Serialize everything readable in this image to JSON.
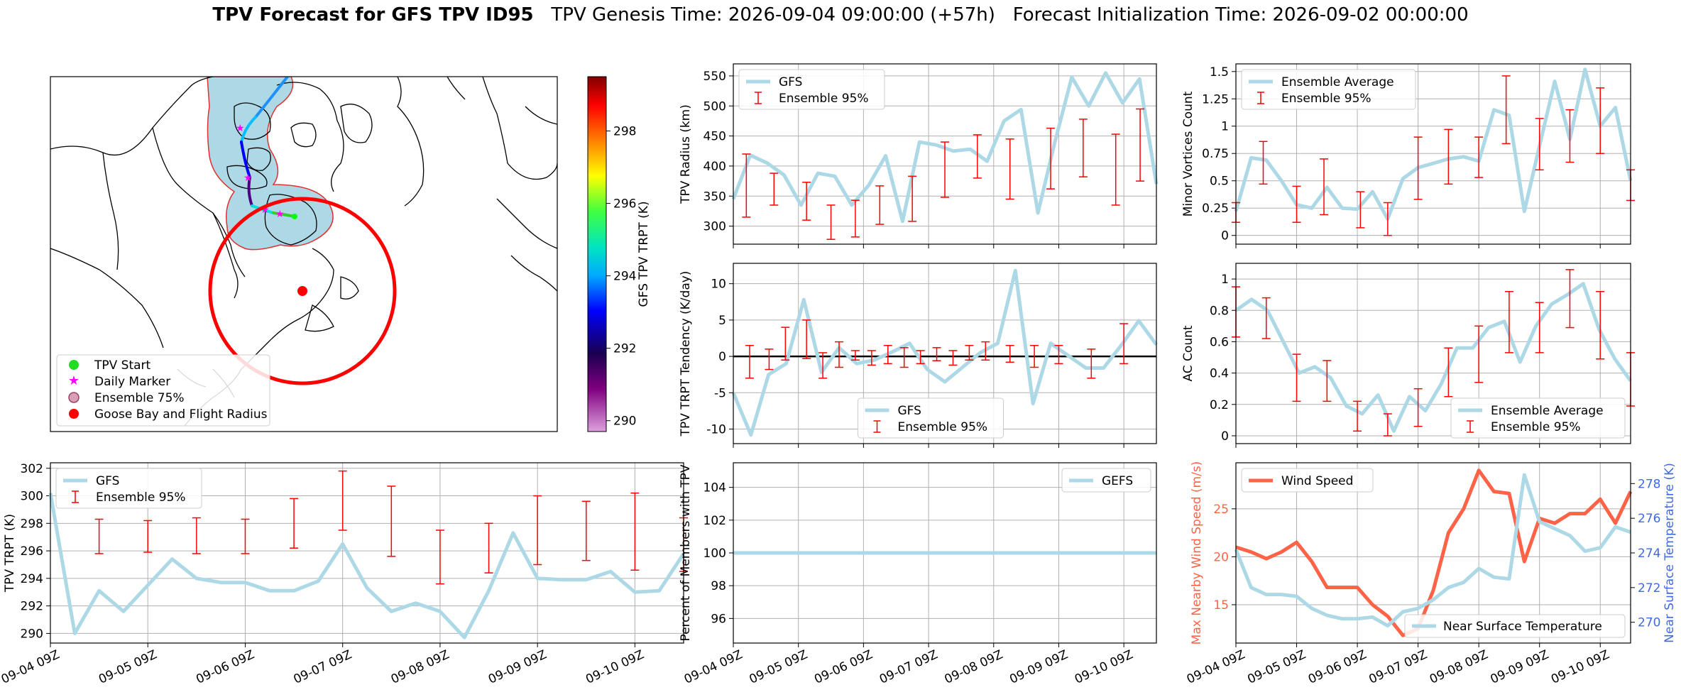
{
  "title": {
    "main": "TPV Forecast for GFS TPV ID95",
    "genesis": "TPV Genesis Time: 2026-09-04 09:00:00 (+57h)",
    "init": "Forecast Initialization Time: 2026-09-02 00:00:00"
  },
  "colors": {
    "gfs": "#add8e6",
    "ensemble": "#ff0000",
    "wind": "#ff6347",
    "temp_axis": "#4169e1",
    "wind_axis": "#ff6347"
  },
  "time_ticks": [
    "09-04 09Z",
    "09-05 09Z",
    "09-06 09Z",
    "09-07 09Z",
    "09-08 09Z",
    "09-09 09Z",
    "09-10 09Z"
  ],
  "map": {
    "legend": [
      "TPV Start",
      "Daily Marker",
      "Ensemble 75%",
      "Goose Bay and Flight Radius"
    ],
    "colorbar_label": "GFS TPV TRPT (K)",
    "colorbar_ticks": [
      "290",
      "292",
      "294",
      "296",
      "298"
    ]
  },
  "chart_data": [
    {
      "id": "radius",
      "type": "line",
      "ylabel": "TPV Radius (km)",
      "xlabel": "",
      "ylim": [
        270,
        570
      ],
      "yticks": [
        300,
        350,
        400,
        450,
        500,
        550
      ],
      "legend": [
        "GFS",
        "Ensemble 95%"
      ],
      "legend_loc": "top-left",
      "series": [
        {
          "name": "GFS",
          "values": [
            345,
            418,
            405,
            385,
            335,
            388,
            383,
            335,
            368,
            417,
            308,
            440,
            435,
            425,
            428,
            408,
            475,
            494,
            322,
            440,
            548,
            500,
            555,
            505,
            545,
            370
          ]
        }
      ],
      "errorbars": [
        {
          "i": 0.8,
          "lo": 315,
          "hi": 420
        },
        {
          "i": 2.5,
          "lo": 335,
          "hi": 388
        },
        {
          "i": 4.5,
          "lo": 310,
          "hi": 373
        },
        {
          "i": 6,
          "lo": 278,
          "hi": 335
        },
        {
          "i": 7.5,
          "lo": 282,
          "hi": 343
        },
        {
          "i": 9,
          "lo": 303,
          "hi": 367
        },
        {
          "i": 11,
          "lo": 308,
          "hi": 383
        },
        {
          "i": 13,
          "lo": 348,
          "hi": 440
        },
        {
          "i": 15,
          "lo": 380,
          "hi": 452
        },
        {
          "i": 17,
          "lo": 345,
          "hi": 445
        },
        {
          "i": 19.5,
          "lo": 362,
          "hi": 463
        },
        {
          "i": 21.5,
          "lo": 382,
          "hi": 478
        },
        {
          "i": 23.5,
          "lo": 335,
          "hi": 453
        },
        {
          "i": 25,
          "lo": 375,
          "hi": 495
        }
      ]
    },
    {
      "id": "minor",
      "type": "line",
      "ylabel": "Minor Vortices Count",
      "xlabel": "",
      "ylim": [
        -0.08,
        1.57
      ],
      "yticks": [
        0.0,
        0.25,
        0.5,
        0.75,
        1.0,
        1.25,
        1.5
      ],
      "legend": [
        "Ensemble Average",
        "Ensemble 95%"
      ],
      "legend_loc": "top-left",
      "series": [
        {
          "name": "Ensemble Average",
          "values": [
            0.22,
            0.71,
            0.69,
            0.5,
            0.28,
            0.25,
            0.44,
            0.25,
            0.24,
            0.4,
            0.15,
            0.52,
            0.62,
            0.66,
            0.7,
            0.72,
            0.68,
            1.15,
            1.1,
            0.22,
            0.82,
            1.41,
            0.88,
            1.52,
            1.0,
            1.17,
            0.5
          ]
        }
      ],
      "errorbars": [
        {
          "i": 0,
          "lo": 0.12,
          "hi": 0.3
        },
        {
          "i": 1.8,
          "lo": 0.47,
          "hi": 0.86
        },
        {
          "i": 4,
          "lo": 0.12,
          "hi": 0.45
        },
        {
          "i": 5.8,
          "lo": 0.19,
          "hi": 0.7
        },
        {
          "i": 8.2,
          "lo": 0.07,
          "hi": 0.4
        },
        {
          "i": 10,
          "lo": 0.0,
          "hi": 0.3
        },
        {
          "i": 12,
          "lo": 0.33,
          "hi": 0.9
        },
        {
          "i": 14,
          "lo": 0.47,
          "hi": 0.97
        },
        {
          "i": 16,
          "lo": 0.53,
          "hi": 0.9
        },
        {
          "i": 17.8,
          "lo": 0.84,
          "hi": 1.46
        },
        {
          "i": 20,
          "lo": 0.6,
          "hi": 1.07
        },
        {
          "i": 22,
          "lo": 0.67,
          "hi": 1.15
        },
        {
          "i": 24,
          "lo": 0.75,
          "hi": 1.35
        },
        {
          "i": 26,
          "lo": 0.32,
          "hi": 0.6
        }
      ]
    },
    {
      "id": "tendency",
      "type": "line",
      "ylabel": "TPV TRPT Tendency (K/day)",
      "xlabel": "",
      "ylim": [
        -12,
        12.8
      ],
      "yticks": [
        -10,
        -5,
        0,
        5,
        10
      ],
      "legend": [
        "GFS",
        "Ensemble 95%"
      ],
      "legend_loc": "bottom-center",
      "series": [
        {
          "name": "GFS",
          "values": [
            -5,
            -10.8,
            -2.5,
            -1,
            7.8,
            -2.2,
            1.2,
            -1,
            -0.5,
            0.6,
            1.8,
            -1.8,
            -3.5,
            -1.5,
            0.5,
            1.8,
            11.8,
            -6.5,
            1.8,
            0.1,
            -1.6,
            -1.6,
            1.5,
            4.9,
            1.6
          ]
        }
      ],
      "errorbars": [
        {
          "i": 1,
          "lo": -3,
          "hi": 1.5
        },
        {
          "i": 2.2,
          "lo": -1.8,
          "hi": 1
        },
        {
          "i": 3.2,
          "lo": -0.5,
          "hi": 4
        },
        {
          "i": 4.5,
          "lo": -0.3,
          "hi": 5
        },
        {
          "i": 5.5,
          "lo": -3,
          "hi": 0.5
        },
        {
          "i": 6.5,
          "lo": -1.5,
          "hi": 2
        },
        {
          "i": 7.5,
          "lo": -0.5,
          "hi": 0.8
        },
        {
          "i": 8.5,
          "lo": -1.2,
          "hi": 0.8
        },
        {
          "i": 9.5,
          "lo": -1,
          "hi": 1.5
        },
        {
          "i": 10.5,
          "lo": -1.5,
          "hi": 1.2
        },
        {
          "i": 11.5,
          "lo": -1,
          "hi": 0.8
        },
        {
          "i": 12.5,
          "lo": -0.6,
          "hi": 1.2
        },
        {
          "i": 13.5,
          "lo": -1.2,
          "hi": 0.8
        },
        {
          "i": 14.5,
          "lo": -0.5,
          "hi": 1.5
        },
        {
          "i": 15.5,
          "lo": -0.5,
          "hi": 2
        },
        {
          "i": 17,
          "lo": -0.8,
          "hi": 1.5
        },
        {
          "i": 18.5,
          "lo": -1.5,
          "hi": 1.5
        },
        {
          "i": 20,
          "lo": -1,
          "hi": 1.5
        },
        {
          "i": 22,
          "lo": -3,
          "hi": 1
        },
        {
          "i": 24,
          "lo": -1,
          "hi": 4.5
        }
      ],
      "zero_line": true
    },
    {
      "id": "ac",
      "type": "line",
      "ylabel": "AC Count",
      "xlabel": "",
      "ylim": [
        -0.05,
        1.1
      ],
      "yticks": [
        0.0,
        0.2,
        0.4,
        0.6,
        0.8,
        1.0
      ],
      "legend": [
        "Ensemble Average",
        "Ensemble 95%"
      ],
      "legend_loc": "bottom-right",
      "series": [
        {
          "name": "Ensemble Average",
          "values": [
            0.8,
            0.87,
            0.8,
            0.6,
            0.4,
            0.44,
            0.37,
            0.19,
            0.14,
            0.26,
            0.03,
            0.25,
            0.16,
            0.33,
            0.56,
            0.56,
            0.69,
            0.73,
            0.47,
            0.7,
            0.84,
            0.9,
            0.97,
            0.68,
            0.49,
            0.35
          ]
        }
      ],
      "errorbars": [
        {
          "i": 0,
          "lo": 0.63,
          "hi": 0.95
        },
        {
          "i": 2,
          "lo": 0.62,
          "hi": 0.88
        },
        {
          "i": 4,
          "lo": 0.22,
          "hi": 0.52
        },
        {
          "i": 6,
          "lo": 0.22,
          "hi": 0.48
        },
        {
          "i": 8,
          "lo": 0.03,
          "hi": 0.22
        },
        {
          "i": 10,
          "lo": 0.0,
          "hi": 0.14
        },
        {
          "i": 12,
          "lo": 0.06,
          "hi": 0.3
        },
        {
          "i": 14,
          "lo": 0.25,
          "hi": 0.56
        },
        {
          "i": 16,
          "lo": 0.34,
          "hi": 0.7
        },
        {
          "i": 18,
          "lo": 0.53,
          "hi": 0.92
        },
        {
          "i": 20,
          "lo": 0.53,
          "hi": 0.85
        },
        {
          "i": 22,
          "lo": 0.69,
          "hi": 1.06
        },
        {
          "i": 24,
          "lo": 0.49,
          "hi": 0.92
        },
        {
          "i": 26,
          "lo": 0.19,
          "hi": 0.53
        }
      ]
    },
    {
      "id": "trpt",
      "type": "line",
      "ylabel": "TPV TRPT (K)",
      "xlabel": "",
      "ylim": [
        289.3,
        302.4
      ],
      "yticks": [
        290,
        292,
        294,
        296,
        298,
        300,
        302
      ],
      "legend": [
        "GFS",
        "Ensemble 95%"
      ],
      "legend_loc": "top-left",
      "series": [
        {
          "name": "GFS",
          "values": [
            300.2,
            290,
            293.1,
            291.6,
            293.5,
            295.4,
            294,
            293.7,
            293.7,
            293.1,
            293.1,
            293.8,
            296.5,
            293.3,
            291.6,
            292.2,
            291.6,
            289.7,
            293.1,
            297.3,
            294,
            293.9,
            293.9,
            294.5,
            293,
            293.1,
            295.8
          ]
        }
      ],
      "errorbars": [
        {
          "i": 2,
          "lo": 295.8,
          "hi": 298.3
        },
        {
          "i": 4,
          "lo": 295.9,
          "hi": 298.2
        },
        {
          "i": 6,
          "lo": 295.8,
          "hi": 298.4
        },
        {
          "i": 8,
          "lo": 295.8,
          "hi": 298.3
        },
        {
          "i": 10,
          "lo": 296.2,
          "hi": 299.8
        },
        {
          "i": 12,
          "lo": 297.5,
          "hi": 301.8
        },
        {
          "i": 14,
          "lo": 295.6,
          "hi": 300.7
        },
        {
          "i": 16,
          "lo": 293.6,
          "hi": 297.5
        },
        {
          "i": 18,
          "lo": 294.4,
          "hi": 298
        },
        {
          "i": 20,
          "lo": 295,
          "hi": 300
        },
        {
          "i": 22,
          "lo": 295.3,
          "hi": 299.6
        },
        {
          "i": 24,
          "lo": 294.6,
          "hi": 300.2
        },
        {
          "i": 26,
          "lo": 294.5,
          "hi": 298.4
        }
      ]
    },
    {
      "id": "members",
      "type": "line",
      "ylabel": "Percent of Members with TPV",
      "xlabel": "",
      "ylim": [
        94.5,
        105.5
      ],
      "yticks": [
        96,
        98,
        100,
        102,
        104
      ],
      "legend": [
        "GEFS"
      ],
      "legend_loc": "top-right",
      "series": [
        {
          "name": "GEFS",
          "values": [
            100,
            100
          ]
        }
      ]
    },
    {
      "id": "wind",
      "type": "line",
      "ylabel": "Max Nearby Wind Speed (m/s)",
      "y2label": "Near Surface Temperature (K)",
      "xlabel": "",
      "ylim": [
        11,
        29.8
      ],
      "yticks": [
        15,
        20,
        25
      ],
      "y2lim": [
        268.8,
        279.2
      ],
      "y2ticks": [
        270,
        272,
        274,
        276,
        278
      ],
      "legend": [
        "Wind Speed"
      ],
      "legend_loc": "top-left",
      "legend2": [
        "Near Surface Temperature"
      ],
      "legend2_loc": "bottom-right",
      "series": [
        {
          "name": "Wind Speed",
          "axis": "left",
          "values": [
            21,
            20.5,
            19.8,
            20.5,
            21.5,
            19.5,
            16.8,
            16.8,
            16.8,
            15,
            13.8,
            11.8,
            12.5,
            16.5,
            22.5,
            25,
            29,
            26.8,
            26.6,
            19.5,
            24,
            23.5,
            24.5,
            24.5,
            26,
            23.5,
            26.8
          ]
        },
        {
          "name": "Near Surface Temperature",
          "axis": "right",
          "values": [
            274.2,
            272,
            271.6,
            271.6,
            271.5,
            270.8,
            270.4,
            270.2,
            270.2,
            270.3,
            269.8,
            270.6,
            270.8,
            271.3,
            272,
            272.3,
            273.1,
            272.6,
            272.5,
            278.5,
            275.8,
            275.4,
            275.0,
            274.1,
            274.3,
            275.5,
            275.2
          ]
        }
      ]
    }
  ]
}
